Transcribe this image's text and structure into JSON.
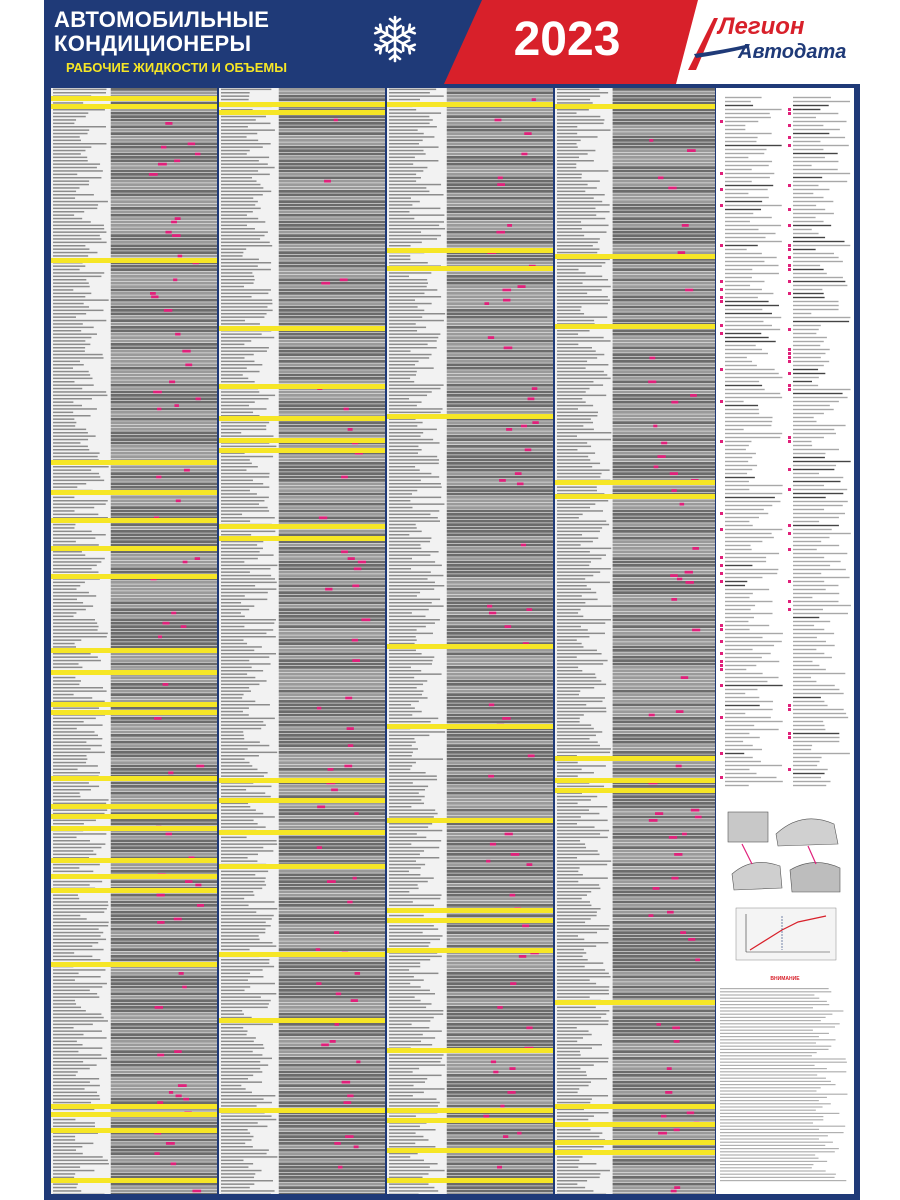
{
  "header": {
    "title_line1": "АВТОМОБИЛЬНЫЕ",
    "title_line2": "КОНДИЦИОНЕРЫ",
    "subtitle": "РАБОЧИЕ ЖИДКОСТИ И ОБЪЕМЫ",
    "year": "2023",
    "logo_line1": "Легион",
    "logo_line2": "Автодата"
  },
  "colors": {
    "brand_blue": "#1f3a78",
    "brand_red": "#d8202a",
    "band_yellow": "#f6e626",
    "row_gray": "#6b6b6b",
    "accent_magenta": "#e0207a"
  },
  "icons": {
    "snowflake": "snowflake-icon",
    "logo_mark": "logo-swoosh-icon"
  },
  "side_panel": {
    "notes_title": "ВНИМАНИЕ"
  }
}
